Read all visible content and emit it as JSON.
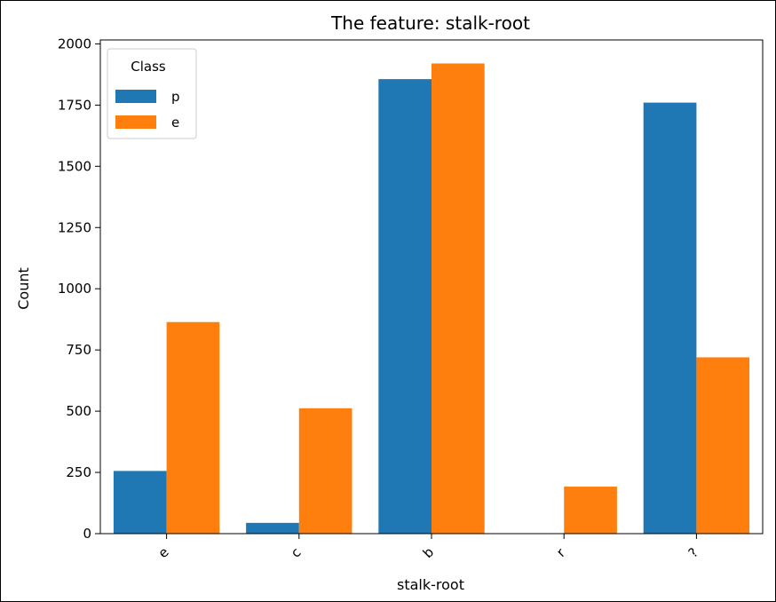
{
  "chart_data": {
    "type": "bar",
    "title": "The feature: stalk-root",
    "xlabel": "stalk-root",
    "ylabel": "Count",
    "categories": [
      "e",
      "c",
      "b",
      "r",
      "?"
    ],
    "series": [
      {
        "name": "p",
        "values": [
          256,
          44,
          1856,
          0,
          1760
        ],
        "color": "#1f77b4"
      },
      {
        "name": "e",
        "values": [
          864,
          512,
          1920,
          192,
          720
        ],
        "color": "#ff7f0e"
      }
    ],
    "ylim": [
      0,
      2016
    ],
    "yticks": [
      0,
      250,
      500,
      750,
      1000,
      1250,
      1500,
      1750,
      2000
    ],
    "grid": false,
    "legend": {
      "title": "Class",
      "placement": "top-left"
    }
  }
}
